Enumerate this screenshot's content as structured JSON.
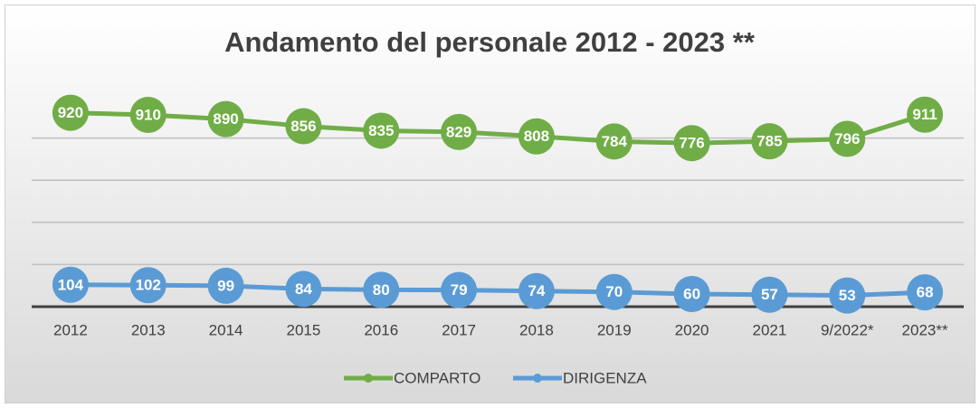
{
  "chart_data": {
    "type": "line",
    "title": "Andamento del personale 2012 - 2023 **",
    "categories": [
      "2012",
      "2013",
      "2014",
      "2015",
      "2016",
      "2017",
      "2018",
      "2019",
      "2020",
      "2021",
      "9/2022*",
      "2023**"
    ],
    "series": [
      {
        "name": "COMPARTO",
        "color": "#70ad47",
        "values": [
          920,
          910,
          890,
          856,
          835,
          829,
          808,
          784,
          776,
          785,
          796,
          911
        ]
      },
      {
        "name": "DIRIGENZA",
        "color": "#5b9bd5",
        "values": [
          104,
          102,
          99,
          84,
          80,
          79,
          74,
          70,
          60,
          57,
          53,
          68
        ]
      }
    ],
    "ylim": [
      0,
      1000
    ],
    "yticks": [
      0,
      200,
      400,
      600,
      800
    ],
    "grid": true,
    "legend": "bottom",
    "data_labels": true
  }
}
